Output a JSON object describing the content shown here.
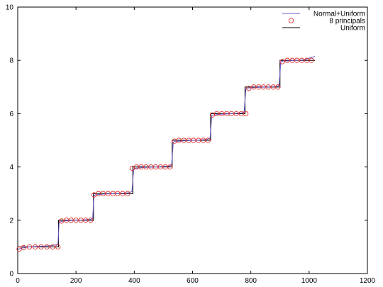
{
  "chart_data": {
    "type": "line",
    "title": "",
    "xlabel": "",
    "ylabel": "",
    "xlim": [
      0,
      1200
    ],
    "ylim": [
      0,
      10
    ],
    "xticks": [
      "0",
      "200",
      "400",
      "600",
      "800",
      "1000",
      "1200"
    ],
    "yticks": [
      "0",
      "2",
      "4",
      "6",
      "8",
      "10"
    ],
    "grid": false,
    "legend": "top-right",
    "colors": {
      "normal_uniform": "#6a5acd",
      "principals": "#e03030",
      "uniform": "#000000"
    },
    "series": [
      {
        "name": "Normal+Uniform",
        "type": "line",
        "x": [
          0,
          12,
          40,
          80,
          120,
          138,
          142,
          146,
          170,
          210,
          250,
          257,
          262,
          266,
          290,
          330,
          380,
          392,
          398,
          402,
          430,
          470,
          520,
          528,
          534,
          538,
          570,
          610,
          650,
          660,
          666,
          670,
          700,
          740,
          770,
          777,
          783,
          787,
          820,
          860,
          890,
          897,
          903,
          907,
          940,
          980,
          1020
        ],
        "y": [
          0.9,
          0.95,
          1.0,
          1.02,
          1.05,
          1.1,
          1.9,
          1.95,
          1.98,
          2.0,
          2.03,
          2.07,
          2.92,
          2.95,
          2.98,
          3.0,
          3.03,
          3.08,
          3.92,
          3.95,
          3.98,
          4.0,
          4.03,
          4.07,
          4.93,
          4.96,
          4.98,
          5.0,
          5.03,
          5.08,
          5.93,
          5.95,
          5.98,
          6.0,
          6.03,
          6.08,
          6.93,
          6.96,
          6.98,
          7.0,
          7.02,
          7.07,
          7.94,
          7.97,
          7.99,
          8.02,
          8.15
        ]
      },
      {
        "name": "8 principals",
        "type": "scatter",
        "x": [
          5,
          20,
          40,
          60,
          80,
          100,
          120,
          138,
          150,
          167,
          183,
          200,
          217,
          233,
          250,
          262,
          277,
          293,
          310,
          327,
          343,
          360,
          377,
          393,
          407,
          423,
          440,
          457,
          473,
          490,
          507,
          523,
          538,
          553,
          570,
          587,
          603,
          620,
          637,
          653,
          668,
          683,
          700,
          717,
          733,
          750,
          767,
          783,
          793,
          810,
          827,
          843,
          860,
          877,
          893,
          908,
          925,
          942,
          958,
          975,
          992,
          1008
        ],
        "y": [
          0.92,
          0.97,
          1.0,
          1.0,
          1.0,
          1.0,
          1.0,
          1.0,
          1.97,
          2.0,
          2.0,
          2.0,
          2.0,
          2.0,
          2.0,
          2.95,
          3.0,
          3.0,
          3.0,
          3.0,
          3.0,
          3.0,
          3.0,
          3.95,
          4.0,
          4.0,
          4.0,
          4.0,
          4.0,
          4.0,
          4.0,
          4.0,
          4.97,
          5.0,
          5.0,
          5.0,
          5.0,
          5.0,
          5.0,
          5.0,
          5.95,
          6.0,
          6.0,
          6.0,
          6.0,
          6.0,
          6.0,
          6.0,
          6.95,
          7.0,
          7.0,
          7.0,
          7.0,
          7.0,
          7.0,
          7.95,
          8.0,
          8.0,
          8.0,
          8.0,
          8.0,
          8.0
        ]
      },
      {
        "name": "Uniform",
        "type": "step",
        "x": [
          0,
          140,
          140,
          260,
          260,
          395,
          395,
          530,
          530,
          662,
          662,
          780,
          780,
          900,
          900,
          1020
        ],
        "y": [
          1,
          1,
          2,
          2,
          3,
          3,
          4,
          4,
          5,
          5,
          6,
          6,
          7,
          7,
          8,
          8
        ]
      }
    ]
  }
}
